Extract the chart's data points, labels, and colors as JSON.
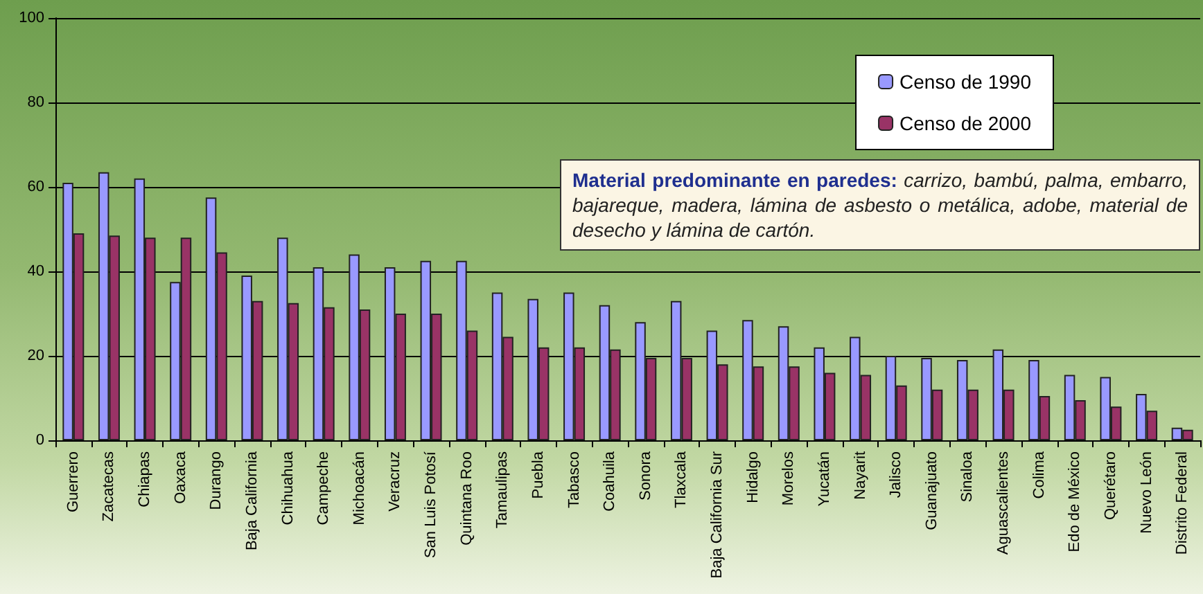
{
  "chart_data": {
    "type": "bar",
    "categories": [
      "Guerrero",
      "Zacatecas",
      "Chiapas",
      "Oaxaca",
      "Durango",
      "Baja California",
      "Chihuahua",
      "Campeche",
      "Michoacán",
      "Veracruz",
      "San Luis Potosí",
      "Quintana Roo",
      "Tamaulipas",
      "Puebla",
      "Tabasco",
      "Coahuila",
      "Sonora",
      "Tlaxcala",
      "Baja California Sur",
      "Hidalgo",
      "Morelos",
      "Yucatán",
      "Nayarit",
      "Jalisco",
      "Guanajuato",
      "Sinaloa",
      "Aguascalientes",
      "Colima",
      "Edo de México",
      "Querétaro",
      "Nuevo León",
      "Distrito Federal"
    ],
    "series": [
      {
        "name": "Censo de 1990",
        "color": "#9999ff",
        "values": [
          61,
          63.5,
          62,
          37.5,
          57.5,
          39,
          48,
          41,
          44,
          41,
          42.5,
          42.5,
          35,
          33.5,
          35,
          32,
          28,
          33,
          26,
          28.5,
          27,
          22,
          24.5,
          20,
          19.5,
          19,
          21.5,
          19,
          15.5,
          15,
          11,
          3
        ]
      },
      {
        "name": "Censo de 2000",
        "color": "#993366",
        "values": [
          49,
          48.5,
          48,
          48,
          44.5,
          33,
          32.5,
          31.5,
          31,
          30,
          30,
          26,
          24.5,
          22,
          22,
          21.5,
          19.5,
          19.5,
          18,
          17.5,
          17.5,
          16,
          15.5,
          13,
          12,
          12,
          12,
          10.5,
          9.5,
          8,
          7,
          2.5
        ]
      }
    ],
    "ylim": [
      0,
      100
    ],
    "yticks": [
      0,
      20,
      40,
      60,
      80,
      100
    ],
    "grid": "y",
    "legend": "top right",
    "annotations": [
      "Material predominante en paredes: carrizo, bambú, palma, embarro, bajareque, madera, lámina de asbesto o metálica, adobe, material de desecho y lámina de cartón."
    ]
  }
}
